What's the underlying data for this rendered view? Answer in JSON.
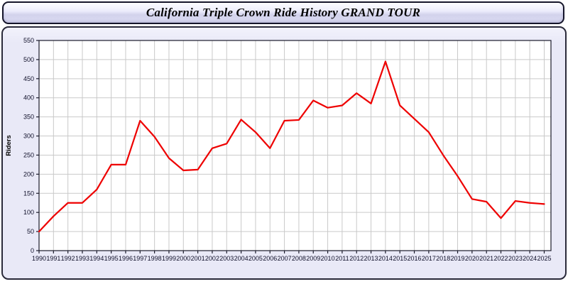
{
  "title_bar": {
    "title": "California Triple Crown Ride History GRAND TOUR"
  },
  "chart_data": {
    "type": "line",
    "title": "California Triple Crown Ride History GRAND TOUR",
    "xlabel": "",
    "ylabel": "Riders",
    "categories": [
      1990,
      1991,
      1992,
      1993,
      1994,
      1995,
      1996,
      1997,
      1998,
      1999,
      2000,
      2001,
      2002,
      2003,
      2004,
      2005,
      2006,
      2007,
      2008,
      2009,
      2010,
      2011,
      2012,
      2013,
      2014,
      2015,
      2016,
      2017,
      2018,
      2019,
      2020,
      2021,
      2022,
      2023,
      2024,
      2025
    ],
    "series": [
      {
        "name": "Riders",
        "values": [
          50,
          90,
          125,
          125,
          160,
          225,
          225,
          340,
          298,
          242,
          210,
          212,
          268,
          280,
          343,
          310,
          268,
          340,
          342,
          393,
          374,
          380,
          412,
          385,
          495,
          380,
          345,
          310,
          250,
          195,
          135,
          128,
          85,
          130,
          125,
          122
        ]
      }
    ],
    "ylim": [
      0,
      550
    ],
    "y_ticks": [
      0,
      50,
      100,
      150,
      200,
      250,
      300,
      350,
      400,
      450,
      500,
      550
    ],
    "grid": true,
    "legend_position": "none",
    "colors": {
      "line": "#ee0000",
      "plot_background": "#ffffff",
      "panel_background": "#e9e9f7",
      "gridline": "#c9c9c9",
      "axis": "#1c1c2c",
      "tick_label": "#10102a"
    }
  }
}
